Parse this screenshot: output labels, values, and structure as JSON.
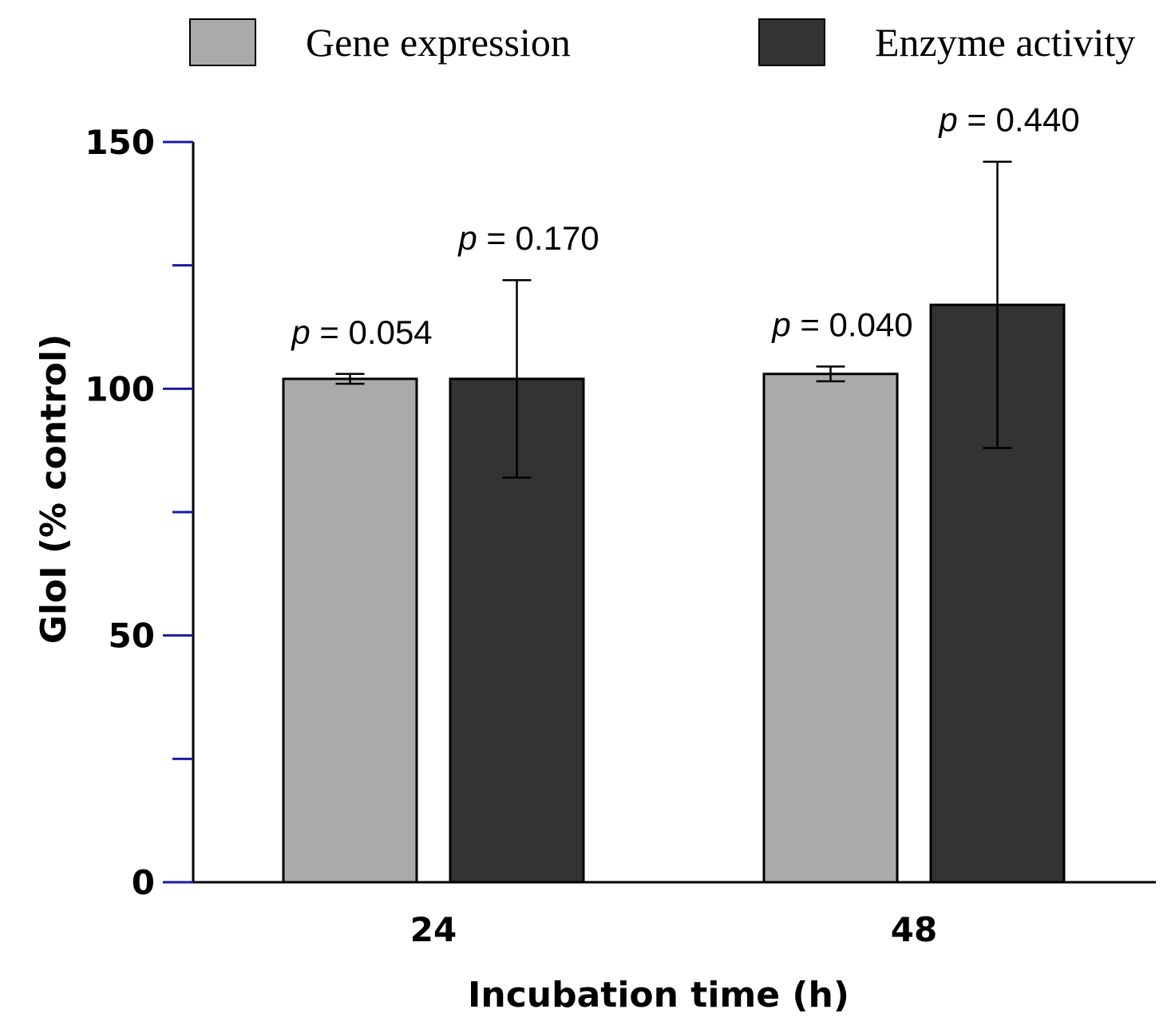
{
  "chart_data": {
    "type": "bar",
    "title": "",
    "xlabel": "Incubation time (h)",
    "ylabel": "GloI (% control)",
    "categories": [
      "24",
      "48"
    ],
    "ylim": [
      0,
      150
    ],
    "yticks": [
      "0",
      "50",
      "100",
      "150"
    ],
    "legend_position": "top",
    "grid": false,
    "series": [
      {
        "name": "Gene expression",
        "color": "#aaaaaa",
        "values": [
          102,
          103
        ],
        "errors": [
          1,
          1.5
        ],
        "annotations": [
          "p = 0.054",
          "p = 0.040"
        ]
      },
      {
        "name": "Enzyme activity",
        "color": "#333333",
        "values": [
          102,
          117
        ],
        "errors": [
          20,
          29
        ],
        "annotations": [
          "p = 0.170",
          "p = 0.440"
        ]
      }
    ]
  }
}
